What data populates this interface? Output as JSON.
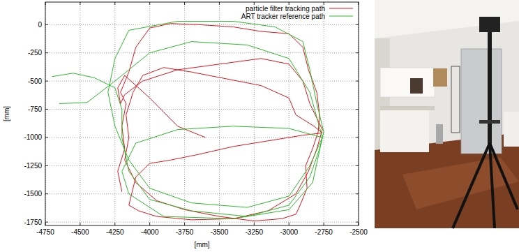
{
  "chart_data": {
    "type": "line",
    "x_label": "[mm]",
    "y_label": "[mm]",
    "xlim": [
      -4750,
      -2500
    ],
    "ylim": [
      -1780,
      200
    ],
    "xticks": [
      -4750,
      -4500,
      -4250,
      -4000,
      -3750,
      -3500,
      -3250,
      -3000,
      -2750,
      -2500
    ],
    "yticks": [
      0,
      -250,
      -500,
      -750,
      -1000,
      -1250,
      -1500,
      -1750
    ],
    "grid": true,
    "legend": "upper right",
    "series": [
      {
        "name": "particle filter tracking path",
        "color": "#e0141e",
        "x": [
          -4200,
          -4230,
          -4180,
          -4200,
          -4170,
          -4210,
          -4150,
          -4100,
          -4000,
          -3850,
          -3650,
          -3400,
          -3200,
          -3000,
          -2900,
          -2860,
          -2800,
          -2780,
          -2790,
          -2830,
          -2880,
          -2870,
          -2920,
          -2950,
          -3050,
          -3250,
          -3500,
          -3750,
          -3950,
          -4100,
          -4180,
          -4150,
          -4170,
          -4120,
          -4050,
          -3900,
          -3700,
          -3450,
          -3200,
          -3000,
          -2950,
          -2820,
          -2760,
          -2900,
          -3100,
          -3400,
          -3650,
          -3850,
          -4000,
          -4100,
          -4130,
          -4150,
          -4080,
          -3950,
          -3700,
          -3400,
          -3150,
          -2950,
          -2860,
          -2800,
          -2760,
          -2850,
          -2900,
          -3000,
          -3200,
          -3500,
          -3800,
          -4050,
          -4180,
          -4210,
          -4230,
          -4180,
          -4000,
          -3800,
          -3600
        ],
        "values": [
          -1480,
          -1300,
          -1100,
          -900,
          -700,
          -600,
          -420,
          -200,
          -30,
          10,
          0,
          -20,
          -60,
          -80,
          -200,
          -400,
          -600,
          -800,
          -950,
          -1100,
          -1250,
          -1450,
          -1600,
          -1680,
          -1720,
          -1740,
          -1700,
          -1640,
          -1560,
          -1400,
          -1200,
          -1000,
          -800,
          -600,
          -450,
          -380,
          -420,
          -480,
          -540,
          -650,
          -800,
          -900,
          -960,
          -980,
          -1020,
          -1080,
          -1150,
          -1200,
          -1230,
          -1350,
          -1500,
          -1600,
          -1650,
          -1700,
          -1730,
          -1720,
          -1650,
          -1500,
          -1300,
          -1100,
          -930,
          -700,
          -500,
          -350,
          -300,
          -350,
          -400,
          -500,
          -620,
          -700,
          -560,
          -450,
          -650,
          -900,
          -1000
        ]
      },
      {
        "name": "ART tracker reference path",
        "color": "#2eb82e",
        "x": [
          -4700,
          -4550,
          -4400,
          -4250,
          -4200,
          -4200,
          -4150,
          -4000,
          -3700,
          -3300,
          -3000,
          -2850,
          -2780,
          -2750,
          -2800,
          -2850,
          -2900,
          -3100,
          -3400,
          -3800,
          -4150,
          -4250,
          -4300,
          -4250,
          -4150,
          -4000,
          -3700,
          -3300,
          -3000,
          -2850,
          -2760,
          -3000,
          -3400,
          -3800,
          -4100,
          -4200,
          -4150,
          -3900,
          -3400,
          -3000,
          -2830,
          -2760,
          -2850,
          -3000,
          -3300,
          -3700,
          -4000,
          -4250,
          -4450,
          -4650
        ],
        "values": [
          -460,
          -430,
          -470,
          -560,
          -750,
          -1000,
          -1300,
          -1550,
          -1650,
          -1700,
          -1600,
          -1350,
          -1100,
          -950,
          -700,
          -400,
          -150,
          -20,
          30,
          30,
          -50,
          -300,
          -600,
          -900,
          -1200,
          -1450,
          -1580,
          -1620,
          -1520,
          -1250,
          -1000,
          -920,
          -900,
          -930,
          -1050,
          -1300,
          -1500,
          -1700,
          -1720,
          -1640,
          -1400,
          -1000,
          -600,
          -300,
          -180,
          -150,
          -250,
          -500,
          -690,
          -700
        ]
      }
    ]
  }
}
